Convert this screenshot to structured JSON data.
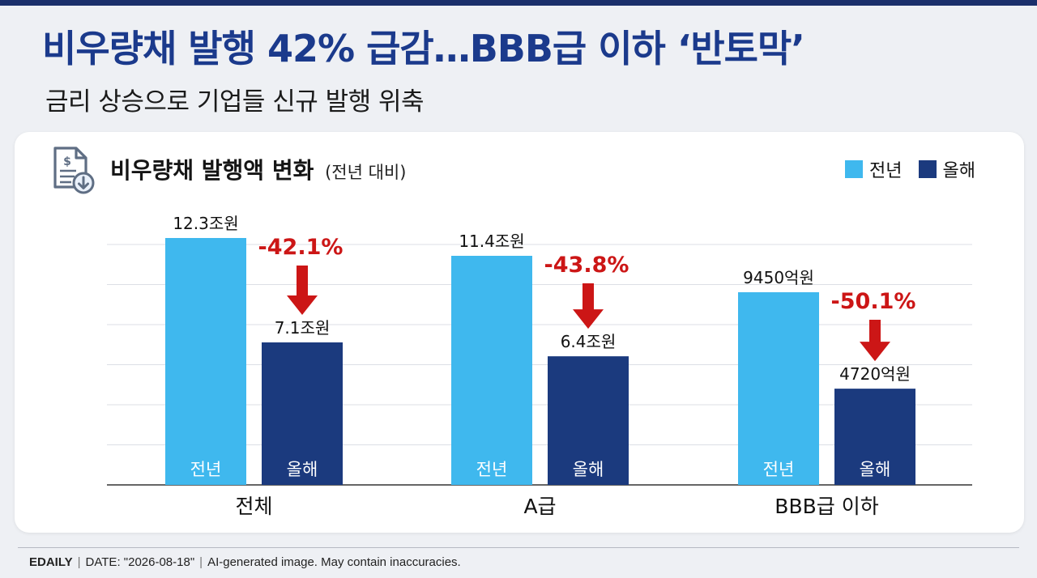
{
  "headline": "비우량채 발행 42% 급감…BBB급 이하 ‘반토막’",
  "subheadline": "금리 상승으로 기업들 신규 발행 위축",
  "legend": {
    "prev": "전년",
    "curr": "올해"
  },
  "colors": {
    "prev": "#3fb8ee",
    "curr": "#1b3a7e",
    "drop": "#cc1616",
    "title": "#1b3a8c"
  },
  "icons": {
    "header": "document-dollar-icon",
    "change": "down-arrow-icon"
  },
  "chart_data": {
    "type": "bar",
    "title": "비우량채 발행액 변화",
    "subtitle": "(전년 대비)",
    "unit": "조원",
    "categories": [
      "전체",
      "A급",
      "BBB급 이하"
    ],
    "series": [
      {
        "name": "전년",
        "values": [
          12.3,
          11.4,
          0.945
        ],
        "labels": [
          "12.3조원",
          "11.4조원",
          "9450억원"
        ],
        "in_bar_label": "전년"
      },
      {
        "name": "올해",
        "values": [
          7.1,
          6.4,
          0.472
        ],
        "labels": [
          "7.1조원",
          "6.4조원",
          "4720억원"
        ],
        "in_bar_label": "올해"
      }
    ],
    "changes": [
      "-42.1%",
      "-43.8%",
      "-50.1%"
    ],
    "grid": true,
    "legend_position": "top-right"
  },
  "footer": {
    "source": "EDAILY",
    "date": "DATE: \"2026-08-18\"",
    "disclaimer": "AI-generated image. May contain inaccuracies."
  }
}
